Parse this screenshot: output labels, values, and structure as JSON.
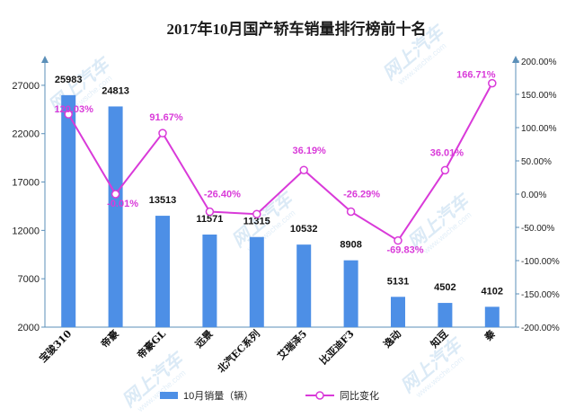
{
  "title": "2017年10月国产轿车销量排行榜前十名",
  "watermark": {
    "text": "网上汽车",
    "sub": "www.wsche.com"
  },
  "legend": {
    "bar_label": "10月销量（辆）",
    "line_label": "同比变化"
  },
  "colors": {
    "bar": "#4d8fe6",
    "line": "#d93ad9",
    "marker_fill": "#ffffff",
    "axis": "#5b8fb8"
  },
  "chart_data": {
    "type": "bar",
    "categories": [
      "宝骏310",
      "帝豪",
      "帝豪GL",
      "远景",
      "北汽EC系列",
      "艾瑞泽5",
      "比亚迪F3",
      "逸动",
      "知豆",
      "秦"
    ],
    "series": [
      {
        "name": "10月销量（辆）",
        "type": "bar",
        "axis": "left",
        "values": [
          25983,
          24813,
          13513,
          11571,
          11315,
          10532,
          8908,
          5131,
          4502,
          4102
        ],
        "value_labels": [
          "25983",
          "24813",
          "13513",
          "11571",
          "11315",
          "10532",
          "8908",
          "5131",
          "4502",
          "4102"
        ]
      },
      {
        "name": "同比变化",
        "type": "line",
        "axis": "right",
        "values": [
          120.03,
          -0.01,
          91.67,
          -26.4,
          -30.0,
          36.19,
          -26.29,
          -69.83,
          36.01,
          166.71
        ],
        "value_labels": [
          "120.03%",
          "-0.01%",
          "91.67%",
          "-26.40%",
          "",
          "36.19%",
          "-26.29%",
          "-69.83%",
          "36.01%",
          "166.71%"
        ]
      }
    ],
    "y_left": {
      "ylim": [
        2000,
        29500
      ],
      "ticks": [
        2000,
        7000,
        12000,
        17000,
        22000,
        27000
      ],
      "tick_labels": [
        "2000",
        "7000",
        "12000",
        "17000",
        "22000",
        "27000"
      ]
    },
    "y_right": {
      "ylim": [
        -200,
        200
      ],
      "ticks": [
        -200,
        -150,
        -100,
        -50,
        0,
        50,
        100,
        150,
        200
      ],
      "tick_labels": [
        "-200.00%",
        "-150.00%",
        "-100.00%",
        "-50.00%",
        "0.00%",
        "50.00%",
        "100.00%",
        "150.00%",
        "200.00%"
      ]
    },
    "grid": false,
    "legend_position": "bottom"
  }
}
